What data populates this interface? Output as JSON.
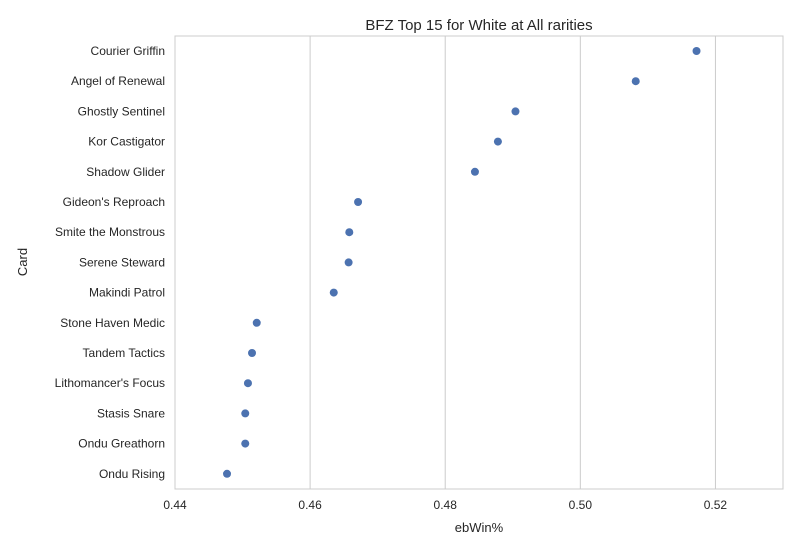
{
  "chart_data": {
    "type": "scatter",
    "title": "BFZ Top 15 for White at All rarities",
    "xlabel": "ebWin%",
    "ylabel": "Card",
    "xlim": [
      0.44,
      0.53
    ],
    "xticks": [
      0.44,
      0.46,
      0.48,
      0.5,
      0.52
    ],
    "xtick_labels": [
      "0.44",
      "0.46",
      "0.48",
      "0.50",
      "0.52"
    ],
    "grid": "vertical",
    "color": "#4c72b0",
    "categories": [
      "Courier Griffin",
      "Angel of Renewal",
      "Ghostly Sentinel",
      "Kor Castigator",
      "Shadow Glider",
      "Gideon's Reproach",
      "Smite the Monstrous",
      "Serene Steward",
      "Makindi Patrol",
      "Stone Haven Medic",
      "Tandem Tactics",
      "Lithomancer's Focus",
      "Stasis Snare",
      "Ondu Greathorn",
      "Ondu Rising"
    ],
    "values": [
      0.5172,
      0.5082,
      0.4904,
      0.4878,
      0.4844,
      0.4671,
      0.4658,
      0.4657,
      0.4635,
      0.4521,
      0.4514,
      0.4508,
      0.4504,
      0.4504,
      0.4477
    ]
  }
}
